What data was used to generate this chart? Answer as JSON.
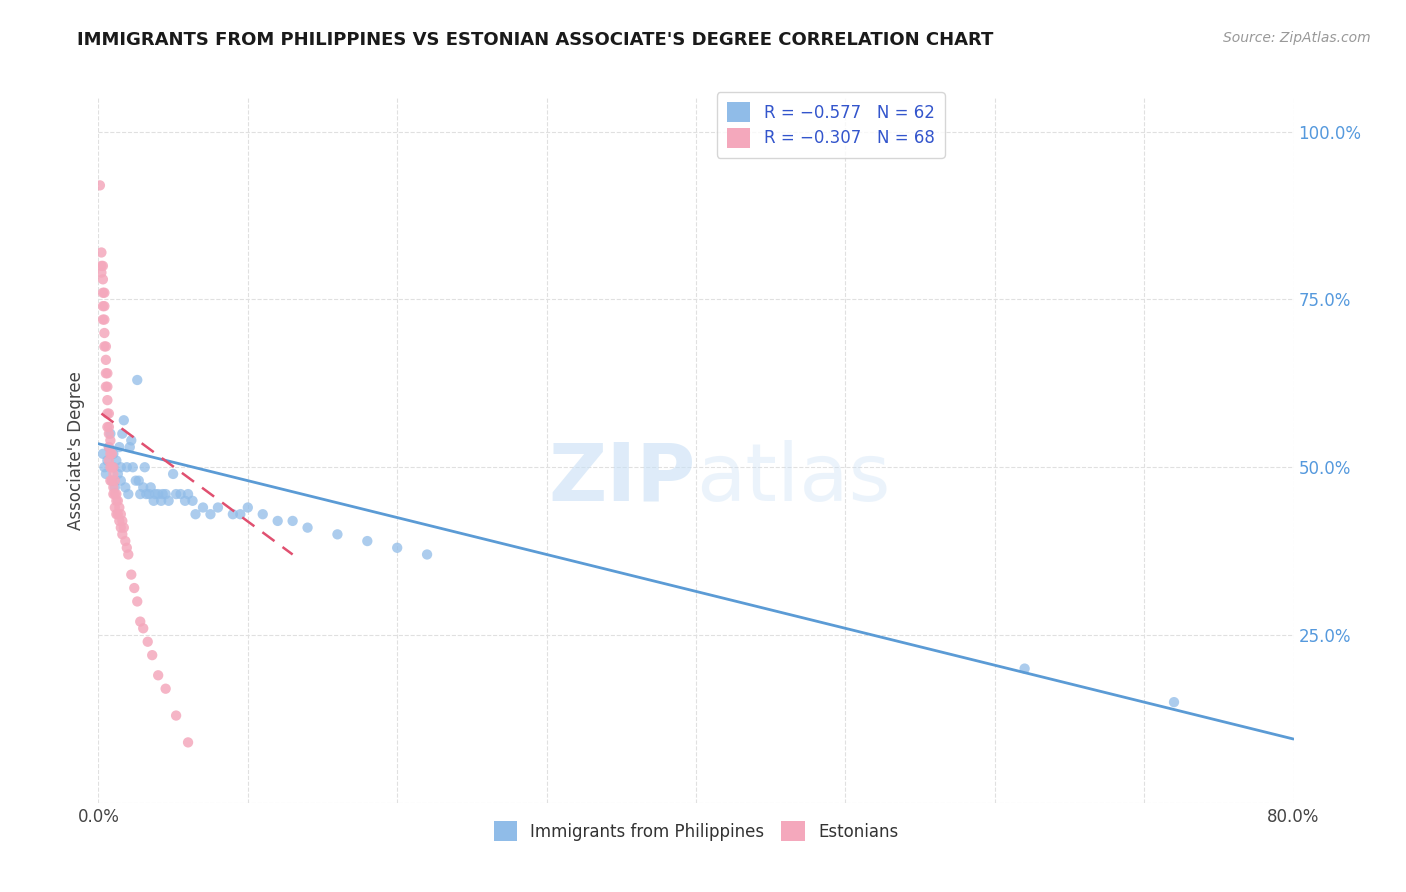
{
  "title": "IMMIGRANTS FROM PHILIPPINES VS ESTONIAN ASSOCIATE'S DEGREE CORRELATION CHART",
  "source": "Source: ZipAtlas.com",
  "ylabel": "Associate's Degree",
  "right_yticks": [
    "100.0%",
    "75.0%",
    "50.0%",
    "25.0%"
  ],
  "right_ytick_vals": [
    1.0,
    0.75,
    0.5,
    0.25
  ],
  "legend_entries": [
    {
      "label": "R = −0.577   N = 62",
      "color": "#a8c8f0"
    },
    {
      "label": "R = −0.307   N = 68",
      "color": "#f4b8c8"
    }
  ],
  "legend_bottom": [
    {
      "label": "Immigrants from Philippines",
      "color": "#a8c8f0"
    },
    {
      "label": "Estonians",
      "color": "#f4b8c8"
    }
  ],
  "blue_scatter_x": [
    0.003,
    0.004,
    0.005,
    0.006,
    0.007,
    0.008,
    0.009,
    0.01,
    0.01,
    0.011,
    0.012,
    0.013,
    0.014,
    0.015,
    0.015,
    0.016,
    0.017,
    0.018,
    0.019,
    0.02,
    0.021,
    0.022,
    0.023,
    0.025,
    0.026,
    0.027,
    0.028,
    0.03,
    0.031,
    0.032,
    0.034,
    0.035,
    0.037,
    0.038,
    0.04,
    0.042,
    0.043,
    0.045,
    0.047,
    0.05,
    0.052,
    0.055,
    0.058,
    0.06,
    0.063,
    0.065,
    0.07,
    0.075,
    0.08,
    0.09,
    0.095,
    0.1,
    0.11,
    0.12,
    0.13,
    0.14,
    0.16,
    0.18,
    0.2,
    0.22,
    0.62,
    0.72
  ],
  "blue_scatter_y": [
    0.52,
    0.5,
    0.49,
    0.51,
    0.53,
    0.55,
    0.48,
    0.5,
    0.52,
    0.47,
    0.51,
    0.49,
    0.53,
    0.5,
    0.48,
    0.55,
    0.57,
    0.47,
    0.5,
    0.46,
    0.53,
    0.54,
    0.5,
    0.48,
    0.63,
    0.48,
    0.46,
    0.47,
    0.5,
    0.46,
    0.46,
    0.47,
    0.45,
    0.46,
    0.46,
    0.45,
    0.46,
    0.46,
    0.45,
    0.49,
    0.46,
    0.46,
    0.45,
    0.46,
    0.45,
    0.43,
    0.44,
    0.43,
    0.44,
    0.43,
    0.43,
    0.44,
    0.43,
    0.42,
    0.42,
    0.41,
    0.4,
    0.39,
    0.38,
    0.37,
    0.2,
    0.15
  ],
  "pink_scatter_x": [
    0.001,
    0.002,
    0.002,
    0.002,
    0.003,
    0.003,
    0.003,
    0.003,
    0.003,
    0.004,
    0.004,
    0.004,
    0.004,
    0.004,
    0.005,
    0.005,
    0.005,
    0.005,
    0.006,
    0.006,
    0.006,
    0.006,
    0.006,
    0.007,
    0.007,
    0.007,
    0.007,
    0.007,
    0.008,
    0.008,
    0.008,
    0.008,
    0.009,
    0.009,
    0.009,
    0.01,
    0.01,
    0.01,
    0.01,
    0.011,
    0.011,
    0.011,
    0.012,
    0.012,
    0.012,
    0.013,
    0.013,
    0.014,
    0.014,
    0.015,
    0.015,
    0.016,
    0.016,
    0.017,
    0.018,
    0.019,
    0.02,
    0.022,
    0.024,
    0.026,
    0.028,
    0.03,
    0.033,
    0.036,
    0.04,
    0.045,
    0.052,
    0.06
  ],
  "pink_scatter_y": [
    0.92,
    0.82,
    0.8,
    0.79,
    0.8,
    0.78,
    0.76,
    0.74,
    0.72,
    0.76,
    0.74,
    0.72,
    0.7,
    0.68,
    0.68,
    0.66,
    0.64,
    0.62,
    0.64,
    0.62,
    0.6,
    0.58,
    0.56,
    0.58,
    0.56,
    0.55,
    0.53,
    0.51,
    0.54,
    0.52,
    0.5,
    0.48,
    0.52,
    0.5,
    0.48,
    0.5,
    0.49,
    0.47,
    0.46,
    0.48,
    0.46,
    0.44,
    0.46,
    0.45,
    0.43,
    0.45,
    0.43,
    0.44,
    0.42,
    0.43,
    0.41,
    0.42,
    0.4,
    0.41,
    0.39,
    0.38,
    0.37,
    0.34,
    0.32,
    0.3,
    0.27,
    0.26,
    0.24,
    0.22,
    0.19,
    0.17,
    0.13,
    0.09
  ],
  "blue_line_x": [
    0.0,
    0.8
  ],
  "blue_line_y": [
    0.535,
    0.095
  ],
  "pink_line_x": [
    0.002,
    0.13
  ],
  "pink_line_y": [
    0.58,
    0.37
  ],
  "xmin": 0.0,
  "xmax": 0.8,
  "ymin": 0.0,
  "ymax": 1.05,
  "watermark_zip": "ZIP",
  "watermark_atlas": "atlas",
  "background_color": "#ffffff",
  "grid_color": "#e0e0e0",
  "blue_scatter_color": "#90bce8",
  "blue_line_color": "#5b9bd5",
  "pink_scatter_color": "#f4a8bc",
  "pink_line_color": "#e05070",
  "title_fontsize": 13,
  "source_fontsize": 10,
  "legend_text_color": "#3355cc",
  "right_tick_color": "#5599dd"
}
